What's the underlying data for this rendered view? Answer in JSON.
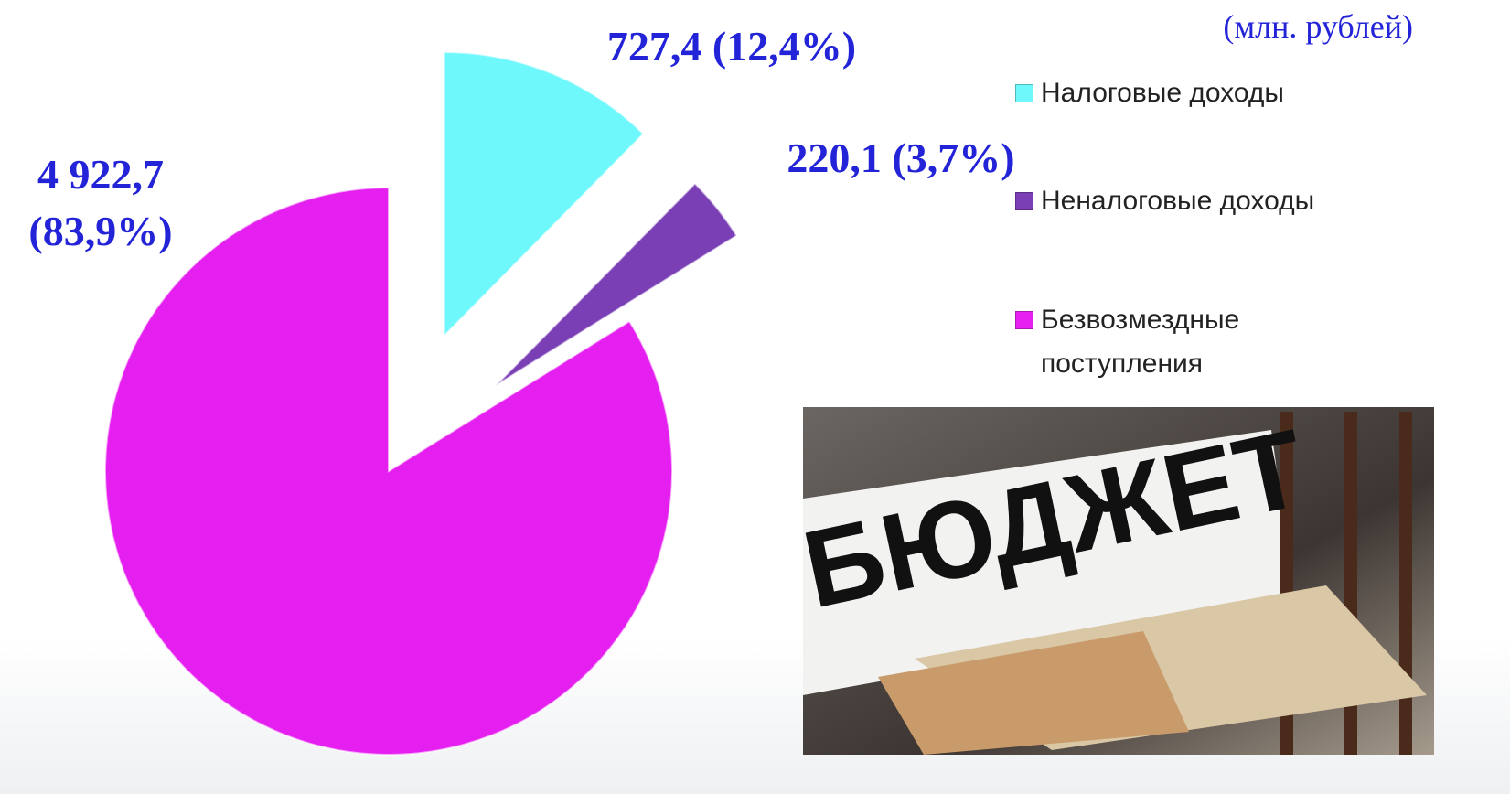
{
  "chart_data": {
    "type": "pie",
    "subtitle": "(млн. рублей)",
    "categories": [
      "Налоговые доходы",
      "Неналоговые доходы",
      "Безвозмездные поступления"
    ],
    "values": [
      727.4,
      220.1,
      4922.7
    ],
    "value_labels": [
      "727,4 (12,4%)",
      "220,1 (3,7%)",
      "4 922,7 (83,9%)"
    ],
    "colors": [
      "#6ef8fb",
      "#7a3fb5",
      "#e51ff0"
    ],
    "legend": "right"
  },
  "image": {
    "text": "БЮДЖЕТ"
  }
}
